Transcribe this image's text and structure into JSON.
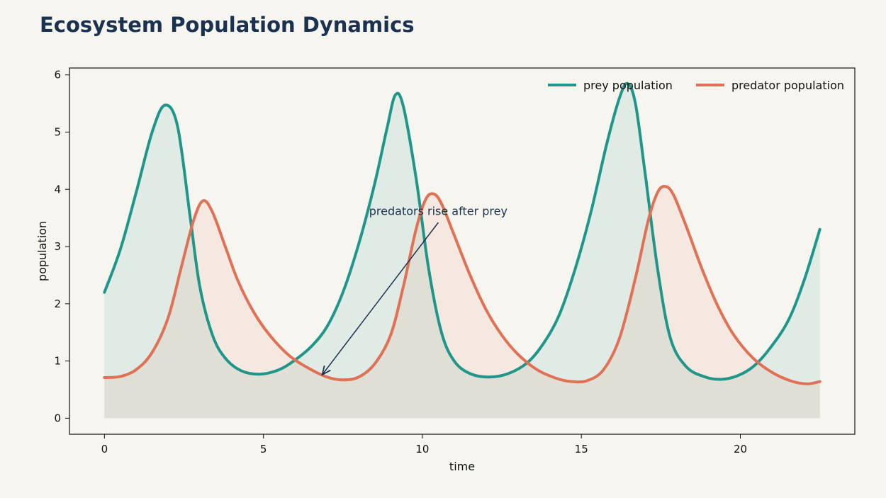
{
  "chart_data": {
    "type": "line",
    "title": "Ecosystem Population Dynamics",
    "xlabel": "time",
    "ylabel": "population",
    "xlim": [
      -1.1,
      23.6
    ],
    "ylim": [
      -0.28,
      6.12
    ],
    "xticks": [
      0,
      5,
      10,
      15,
      20
    ],
    "yticks": [
      0,
      1,
      2,
      3,
      4,
      5,
      6
    ],
    "grid": false,
    "legend_position": "top-right",
    "filled_area": true,
    "colors": {
      "prey": "#20968a",
      "predator": "#e07155",
      "title": "#1a3150",
      "background": "#f6f5f0"
    },
    "series": [
      {
        "name": "prey population",
        "color": "#20968a",
        "points": [
          [
            0.0,
            2.2
          ],
          [
            0.5,
            2.95
          ],
          [
            1.0,
            3.95
          ],
          [
            1.5,
            5.0
          ],
          [
            1.9,
            5.47
          ],
          [
            2.3,
            5.1
          ],
          [
            2.7,
            3.5
          ],
          [
            3.0,
            2.3
          ],
          [
            3.4,
            1.45
          ],
          [
            3.8,
            1.05
          ],
          [
            4.3,
            0.83
          ],
          [
            4.9,
            0.77
          ],
          [
            5.5,
            0.85
          ],
          [
            6.0,
            1.02
          ],
          [
            6.5,
            1.25
          ],
          [
            7.0,
            1.6
          ],
          [
            7.5,
            2.2
          ],
          [
            8.0,
            3.05
          ],
          [
            8.5,
            4.1
          ],
          [
            8.9,
            5.1
          ],
          [
            9.15,
            5.65
          ],
          [
            9.4,
            5.45
          ],
          [
            9.8,
            4.2
          ],
          [
            10.2,
            2.6
          ],
          [
            10.6,
            1.5
          ],
          [
            11.0,
            1.0
          ],
          [
            11.5,
            0.78
          ],
          [
            12.1,
            0.72
          ],
          [
            12.7,
            0.78
          ],
          [
            13.3,
            0.97
          ],
          [
            13.8,
            1.3
          ],
          [
            14.3,
            1.8
          ],
          [
            14.8,
            2.6
          ],
          [
            15.3,
            3.6
          ],
          [
            15.8,
            4.8
          ],
          [
            16.2,
            5.6
          ],
          [
            16.45,
            5.85
          ],
          [
            16.7,
            5.5
          ],
          [
            17.0,
            4.3
          ],
          [
            17.4,
            2.6
          ],
          [
            17.8,
            1.4
          ],
          [
            18.3,
            0.9
          ],
          [
            18.9,
            0.72
          ],
          [
            19.4,
            0.68
          ],
          [
            19.9,
            0.74
          ],
          [
            20.4,
            0.9
          ],
          [
            20.9,
            1.2
          ],
          [
            21.5,
            1.7
          ],
          [
            22.0,
            2.4
          ],
          [
            22.5,
            3.3
          ]
        ]
      },
      {
        "name": "predator population",
        "color": "#e07155",
        "points": [
          [
            0.0,
            0.71
          ],
          [
            0.5,
            0.73
          ],
          [
            1.0,
            0.85
          ],
          [
            1.5,
            1.15
          ],
          [
            2.0,
            1.75
          ],
          [
            2.4,
            2.6
          ],
          [
            2.8,
            3.45
          ],
          [
            3.1,
            3.8
          ],
          [
            3.4,
            3.6
          ],
          [
            3.8,
            3.0
          ],
          [
            4.2,
            2.4
          ],
          [
            4.7,
            1.85
          ],
          [
            5.2,
            1.45
          ],
          [
            5.8,
            1.1
          ],
          [
            6.4,
            0.88
          ],
          [
            7.0,
            0.72
          ],
          [
            7.5,
            0.67
          ],
          [
            8.0,
            0.72
          ],
          [
            8.5,
            0.95
          ],
          [
            9.0,
            1.45
          ],
          [
            9.4,
            2.3
          ],
          [
            9.8,
            3.3
          ],
          [
            10.1,
            3.82
          ],
          [
            10.35,
            3.92
          ],
          [
            10.6,
            3.75
          ],
          [
            11.0,
            3.2
          ],
          [
            11.5,
            2.5
          ],
          [
            12.0,
            1.9
          ],
          [
            12.5,
            1.45
          ],
          [
            13.0,
            1.12
          ],
          [
            13.6,
            0.85
          ],
          [
            14.2,
            0.7
          ],
          [
            14.7,
            0.64
          ],
          [
            15.2,
            0.66
          ],
          [
            15.7,
            0.85
          ],
          [
            16.2,
            1.4
          ],
          [
            16.7,
            2.45
          ],
          [
            17.1,
            3.45
          ],
          [
            17.4,
            3.95
          ],
          [
            17.65,
            4.05
          ],
          [
            17.9,
            3.9
          ],
          [
            18.3,
            3.35
          ],
          [
            18.8,
            2.6
          ],
          [
            19.3,
            1.95
          ],
          [
            19.8,
            1.45
          ],
          [
            20.4,
            1.05
          ],
          [
            21.0,
            0.8
          ],
          [
            21.6,
            0.65
          ],
          [
            22.1,
            0.6
          ],
          [
            22.5,
            0.64
          ]
        ]
      }
    ],
    "annotation": {
      "text": "predators rise after prey",
      "text_at": [
        10.5,
        3.55
      ],
      "arrow_from": [
        10.5,
        3.42
      ],
      "arrow_to": [
        6.85,
        0.76
      ]
    }
  }
}
